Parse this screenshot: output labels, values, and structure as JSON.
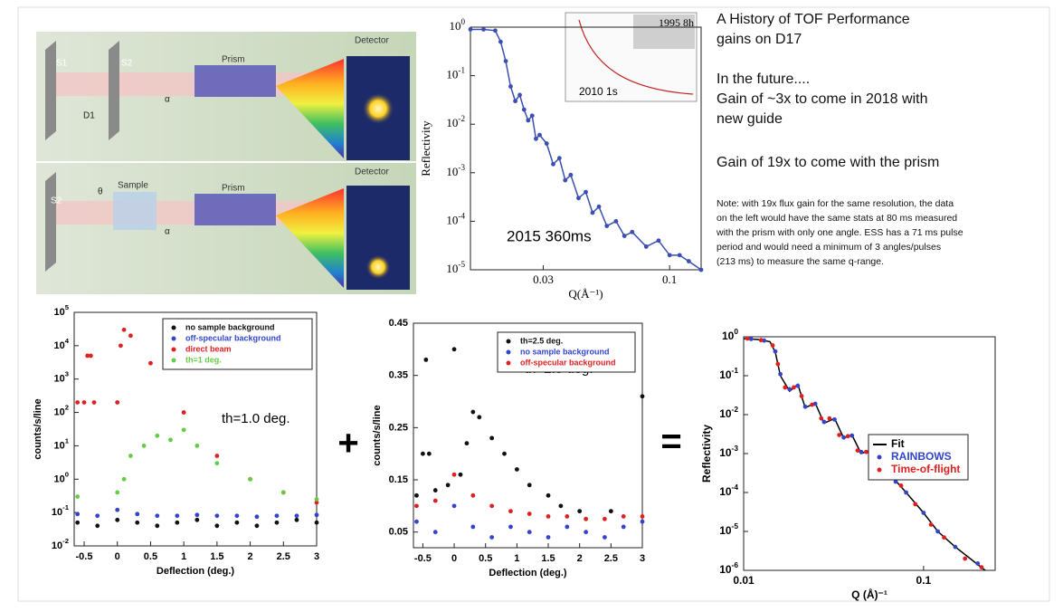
{
  "slide": {
    "heading": [
      "A History of TOF Performance",
      "gains on D17"
    ],
    "future": [
      "In the future....",
      "Gain of ~3x to come in 2018 with",
      "new guide"
    ],
    "prism_gain": "Gain of 19x to come with the prism",
    "note": [
      "Note: with 19x flux gain for the same resolution, the data",
      "on the left  would have the same stats at 80 ms measured",
      "with the prism with only one angle. ESS has a 71 ms pulse",
      "period and would need a minimum of 3 angles/pulses",
      "(213 ms) to measure the same q-range."
    ],
    "plus": "+",
    "equals": "="
  },
  "diagram": {
    "top": [
      "S1",
      "S2",
      "D1",
      "α",
      "Prism",
      "Detector"
    ],
    "bottom": [
      "S2",
      "Sample",
      "θ",
      "α",
      "Prism",
      "Detector"
    ]
  },
  "chart_data": [
    {
      "type": "line",
      "y_label": "Reflectivity",
      "x_label": "Q(Å⁻¹)",
      "annotation": "2015 360ms",
      "inset_labels": [
        "1995 8h",
        "2010 1s"
      ],
      "xlog": true,
      "ylog": true,
      "xlim": [
        0.015,
        0.135
      ],
      "ylim": [
        1e-05,
        1
      ],
      "xticks": [
        0.03,
        0.1
      ],
      "yticks": [
        {
          "value": 1,
          "label": "10",
          "exp": "0"
        },
        {
          "value": 0.1,
          "label": "10",
          "exp": "-1"
        },
        {
          "value": 0.01,
          "label": "10",
          "exp": "-2"
        },
        {
          "value": 0.001,
          "label": "10",
          "exp": "-3"
        },
        {
          "value": 0.0001,
          "label": "10",
          "exp": "-4"
        },
        {
          "value": 1e-05,
          "label": "10",
          "exp": "-5"
        }
      ],
      "series": [
        {
          "color": "#3a4fb0",
          "style": "line+markers",
          "x": [
            0.015,
            0.017,
            0.019,
            0.02,
            0.021,
            0.022,
            0.023,
            0.024,
            0.025,
            0.026,
            0.027,
            0.028,
            0.029,
            0.031,
            0.033,
            0.035,
            0.037,
            0.039,
            0.042,
            0.045,
            0.048,
            0.051,
            0.055,
            0.06,
            0.065,
            0.07,
            0.08,
            0.09,
            0.1,
            0.11,
            0.12,
            0.135
          ],
          "values": [
            0.9,
            0.9,
            0.85,
            0.5,
            0.2,
            0.06,
            0.03,
            0.04,
            0.02,
            0.012,
            0.015,
            0.005,
            0.006,
            0.004,
            0.0015,
            0.002,
            0.0007,
            0.0009,
            0.0003,
            0.0004,
            0.00015,
            0.0002,
            8e-05,
            0.0001,
            5e-05,
            6e-05,
            3e-05,
            4e-05,
            2e-05,
            2e-05,
            1.5e-05,
            1e-05
          ]
        }
      ]
    },
    {
      "type": "scatter",
      "y_label": "counts/s/line",
      "x_label": "Deflection (deg.)",
      "annotation": "th=1.0 deg.",
      "legend": "upper right",
      "xlog": false,
      "ylog": true,
      "xlim": [
        -0.65,
        3
      ],
      "ylim": [
        0.01,
        100000
      ],
      "xticks": [
        -0.5,
        0,
        0.5,
        1,
        1.5,
        2,
        2.5,
        3
      ],
      "yticks": [
        {
          "value": 100000,
          "label": "10",
          "exp": "5"
        },
        {
          "value": 10000,
          "label": "10",
          "exp": "4"
        },
        {
          "value": 1000,
          "label": "10",
          "exp": "3"
        },
        {
          "value": 100,
          "label": "10",
          "exp": "2"
        },
        {
          "value": 10,
          "label": "10",
          "exp": "1"
        },
        {
          "value": 1,
          "label": "10",
          "exp": "0"
        },
        {
          "value": 0.1,
          "label": "10",
          "exp": "-1"
        },
        {
          "value": 0.01,
          "label": "10",
          "exp": "-2"
        }
      ],
      "series": [
        {
          "name": "no sample background",
          "color": "#111111",
          "style": "markers",
          "x": [
            -0.6,
            -0.3,
            0,
            0.3,
            0.6,
            0.9,
            1.2,
            1.5,
            1.8,
            2.1,
            2.4,
            2.7,
            3
          ],
          "values": [
            0.05,
            0.04,
            0.06,
            0.05,
            0.04,
            0.05,
            0.06,
            0.04,
            0.05,
            0.04,
            0.05,
            0.06,
            0.05
          ]
        },
        {
          "name": "off-specular background",
          "color": "#3344cc",
          "style": "markers",
          "x": [
            -0.6,
            -0.3,
            0,
            0.3,
            0.6,
            0.9,
            1.2,
            1.5,
            1.8,
            2.1,
            2.4,
            2.7,
            3
          ],
          "values": [
            0.09,
            0.08,
            0.12,
            0.09,
            0.08,
            0.08,
            0.085,
            0.08,
            0.08,
            0.075,
            0.08,
            0.08,
            0.085
          ]
        },
        {
          "name": "direct beam",
          "color": "#e02020",
          "style": "markers",
          "x": [
            -0.6,
            -0.5,
            -0.45,
            -0.4,
            -0.35,
            0,
            0.05,
            0.1,
            0.2,
            0.5,
            1,
            1.5,
            2,
            2.5,
            3
          ],
          "values": [
            200,
            200,
            5000,
            5000,
            200,
            200,
            10000,
            30000,
            20000,
            3000,
            100,
            5,
            1,
            0.4,
            0.2
          ]
        },
        {
          "name": "th=1 deg.",
          "color": "#66cc44",
          "style": "markers",
          "x": [
            -0.6,
            0,
            0.1,
            0.2,
            0.4,
            0.6,
            0.8,
            1,
            1.2,
            1.5,
            2,
            2.5,
            3
          ],
          "values": [
            0.3,
            0.4,
            1,
            5,
            10,
            20,
            15,
            30,
            10,
            3,
            1,
            0.4,
            0.25
          ]
        }
      ]
    },
    {
      "type": "scatter",
      "y_label": "counts/s/line",
      "x_label": "Deflection (deg.)",
      "annotation": "th=2.5 deg.",
      "legend": "upper right",
      "xlog": false,
      "ylog": false,
      "xlim": [
        -0.65,
        3
      ],
      "ylim": [
        0.02,
        0.45
      ],
      "xticks": [
        -0.5,
        0,
        0.5,
        1,
        1.5,
        2,
        2.5,
        3
      ],
      "yticks": [
        0.05,
        0.15,
        0.25,
        0.35,
        0.45
      ],
      "series": [
        {
          "name": "th=2.5 deg.",
          "color": "#111111",
          "style": "markers",
          "x": [
            -0.6,
            -0.5,
            -0.45,
            -0.4,
            -0.3,
            -0.1,
            0,
            0.1,
            0.2,
            0.3,
            0.4,
            0.6,
            0.8,
            1,
            1.2,
            1.5,
            1.7,
            2,
            2.5,
            3
          ],
          "values": [
            0.12,
            0.2,
            0.38,
            0.2,
            0.13,
            0.14,
            0.4,
            0.16,
            0.22,
            0.28,
            0.27,
            0.23,
            0.2,
            0.17,
            0.14,
            0.12,
            0.1,
            0.09,
            0.09,
            0.31
          ]
        },
        {
          "name": "no sample background",
          "color": "#3344cc",
          "style": "markers",
          "x": [
            -0.6,
            -0.3,
            0,
            0.3,
            0.6,
            0.9,
            1.2,
            1.5,
            1.8,
            2.1,
            2.4,
            2.7,
            3
          ],
          "values": [
            0.07,
            0.05,
            0.1,
            0.06,
            0.04,
            0.06,
            0.05,
            0.04,
            0.06,
            0.05,
            0.04,
            0.06,
            0.07
          ]
        },
        {
          "name": "off-specular background",
          "color": "#e02020",
          "style": "markers",
          "x": [
            -0.6,
            -0.3,
            0,
            0.3,
            0.6,
            0.9,
            1.2,
            1.5,
            1.8,
            2.1,
            2.4,
            2.7,
            3
          ],
          "values": [
            0.1,
            0.11,
            0.16,
            0.12,
            0.1,
            0.09,
            0.085,
            0.08,
            0.08,
            0.075,
            0.075,
            0.08,
            0.08
          ]
        }
      ]
    },
    {
      "type": "line",
      "y_label": "Reflectivity",
      "x_label": "Q (Å)⁻¹",
      "legend": "center right",
      "xlog": true,
      "ylog": true,
      "xlim": [
        0.01,
        0.25
      ],
      "ylim": [
        1e-06,
        1
      ],
      "xticks": [
        0.01,
        0.1
      ],
      "yticks": [
        {
          "value": 1,
          "label": "10",
          "exp": "0"
        },
        {
          "value": 0.1,
          "label": "10",
          "exp": "-1"
        },
        {
          "value": 0.01,
          "label": "10",
          "exp": "-2"
        },
        {
          "value": 0.001,
          "label": "10",
          "exp": "-3"
        },
        {
          "value": 0.0001,
          "label": "10",
          "exp": "-4"
        },
        {
          "value": 1e-05,
          "label": "10",
          "exp": "-5"
        },
        {
          "value": 1e-06,
          "label": "10",
          "exp": "-6"
        }
      ],
      "series": [
        {
          "name": "Fit",
          "color": "#000000",
          "style": "line",
          "x": [
            0.01,
            0.012,
            0.014,
            0.015,
            0.016,
            0.018,
            0.02,
            0.022,
            0.025,
            0.028,
            0.032,
            0.036,
            0.04,
            0.045,
            0.05,
            0.06,
            0.07,
            0.08,
            0.1,
            0.12,
            0.15,
            0.22
          ],
          "values": [
            0.9,
            0.85,
            0.75,
            0.4,
            0.1,
            0.04,
            0.06,
            0.015,
            0.02,
            0.006,
            0.008,
            0.0025,
            0.003,
            0.001,
            0.0012,
            0.0004,
            0.0002,
            0.0001,
            3e-05,
            1e-05,
            4e-06,
            1e-06
          ]
        },
        {
          "name": "RAINBOWS",
          "color": "#3344cc",
          "style": "markers",
          "x": [
            0.011,
            0.013,
            0.015,
            0.016,
            0.018,
            0.02,
            0.022,
            0.025,
            0.028,
            0.032,
            0.036,
            0.04,
            0.045,
            0.05,
            0.06,
            0.07,
            0.08,
            0.1,
            0.12,
            0.15,
            0.2
          ],
          "values": [
            0.88,
            0.8,
            0.42,
            0.11,
            0.045,
            0.055,
            0.016,
            0.019,
            0.0065,
            0.0075,
            0.0026,
            0.0029,
            0.0011,
            0.0011,
            0.00042,
            0.00019,
            0.0001,
            3e-05,
            1e-05,
            4e-06,
            1.5e-06
          ]
        },
        {
          "name": "Time-of-flight",
          "color": "#e02020",
          "style": "markers",
          "x": [
            0.0105,
            0.0125,
            0.0145,
            0.0155,
            0.017,
            0.019,
            0.021,
            0.024,
            0.027,
            0.03,
            0.034,
            0.038,
            0.043,
            0.048,
            0.055,
            0.065,
            0.075,
            0.09,
            0.11,
            0.13,
            0.17,
            0.21
          ],
          "values": [
            0.9,
            0.82,
            0.6,
            0.2,
            0.05,
            0.05,
            0.03,
            0.018,
            0.008,
            0.008,
            0.003,
            0.0028,
            0.0012,
            0.0011,
            0.0006,
            0.00025,
            0.00015,
            5e-05,
            1.5e-05,
            7e-06,
            2e-06,
            1.2e-06
          ]
        }
      ]
    }
  ]
}
